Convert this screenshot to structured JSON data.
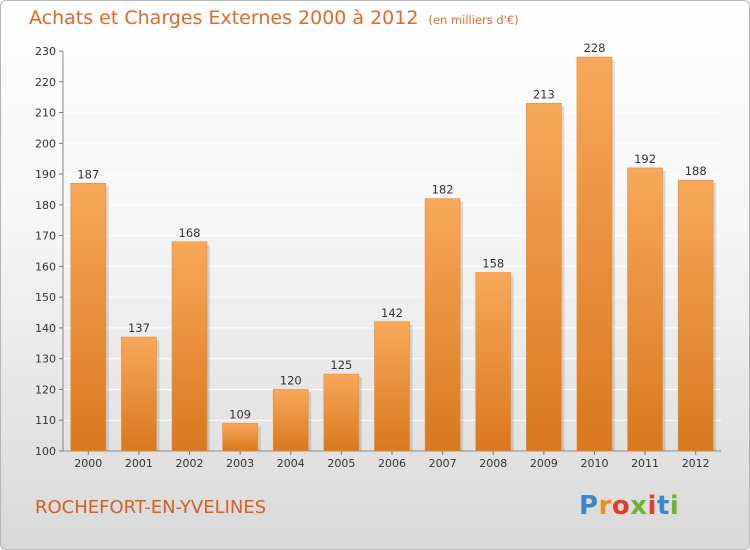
{
  "header": {
    "title": "Achats et Charges Externes 2000 à 2012",
    "unit": "(en milliers d'€)"
  },
  "footer": {
    "commune": "ROCHEFORT-EN-YVELINES",
    "logo_letters": [
      "P",
      "r",
      "o",
      "x",
      "i",
      "t",
      "i"
    ]
  },
  "colors": {
    "accent": "#e0692a",
    "bar_top": "#f8a85a",
    "bar_bottom": "#d9781f",
    "grid": "#ffffff"
  },
  "chart_data": {
    "type": "bar",
    "title": "Achats et Charges Externes 2000 à 2012",
    "xlabel": "",
    "ylabel": "",
    "categories": [
      "2000",
      "2001",
      "2002",
      "2003",
      "2004",
      "2005",
      "2006",
      "2007",
      "2008",
      "2009",
      "2010",
      "2011",
      "2012"
    ],
    "values": [
      187,
      137,
      168,
      109,
      120,
      125,
      142,
      182,
      158,
      213,
      228,
      192,
      188
    ],
    "ylim": [
      100,
      230
    ],
    "yticks": [
      100,
      110,
      120,
      130,
      140,
      150,
      160,
      170,
      180,
      190,
      200,
      210,
      220,
      230
    ],
    "grid": true,
    "legend": "none"
  }
}
